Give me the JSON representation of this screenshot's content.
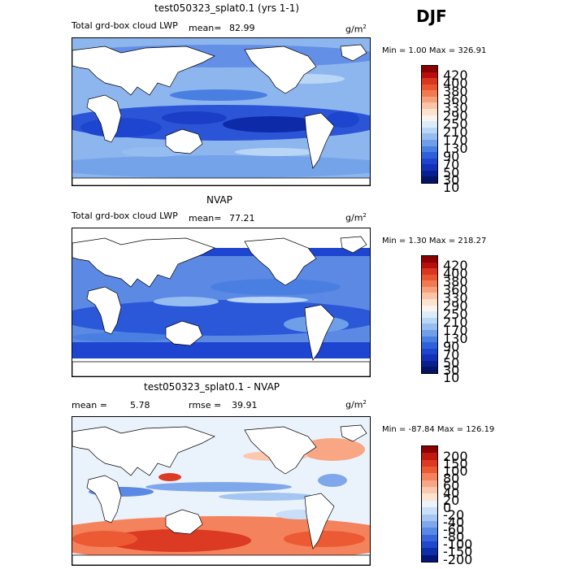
{
  "season": "DJF",
  "panels": [
    {
      "id": "model",
      "title": "test050323_splat0.1 (yrs 1-1)",
      "variable": "Total grd-box cloud LWP",
      "mean_label": "mean=",
      "mean_value": "82.99",
      "units_base": "g/m",
      "units_exp": "2",
      "minmax": "Min =    1.00 Max = 326.91",
      "colorbar": {
        "colors": [
          "#8b0000",
          "#b80e0e",
          "#d9361f",
          "#e8552f",
          "#f27a52",
          "#f8a07c",
          "#fbc4a6",
          "#fde2cf",
          "#fbf4ee",
          "#dcebfa",
          "#bad6f6",
          "#96bdf0",
          "#6e9fe8",
          "#4a7fe2",
          "#2f60db",
          "#1d45cf",
          "#1230b8",
          "#0a1f8f",
          "#031466"
        ],
        "labels": [
          "420",
          "400",
          "380",
          "360",
          "330",
          "290",
          "250",
          "210",
          "170",
          "130",
          "90",
          "70",
          "50",
          "30",
          "10"
        ]
      }
    },
    {
      "id": "obs",
      "title": "NVAP",
      "variable": "Total grd-box cloud LWP",
      "mean_label": "mean=",
      "mean_value": "77.21",
      "units_base": "g/m",
      "units_exp": "2",
      "minmax": "Min =    1.30 Max = 218.27",
      "colorbar": {
        "colors": [
          "#8b0000",
          "#b80e0e",
          "#d9361f",
          "#e8552f",
          "#f27a52",
          "#f8a07c",
          "#fbc4a6",
          "#fde2cf",
          "#fbf4ee",
          "#dcebfa",
          "#bad6f6",
          "#96bdf0",
          "#6e9fe8",
          "#4a7fe2",
          "#2f60db",
          "#1d45cf",
          "#1230b8",
          "#0a1f8f",
          "#031466"
        ],
        "labels": [
          "420",
          "400",
          "380",
          "360",
          "330",
          "290",
          "250",
          "210",
          "170",
          "130",
          "90",
          "70",
          "50",
          "30",
          "10"
        ]
      }
    },
    {
      "id": "diff",
      "title": "test050323_splat0.1 - NVAP",
      "mean_label": "mean =",
      "mean_value": "5.78",
      "rmse_label": "rmse =",
      "rmse_value": "39.91",
      "units_base": "g/m",
      "units_exp": "2",
      "minmax": "Min = -87.84 Max = 126.19",
      "colorbar": {
        "colors": [
          "#8b0000",
          "#c01a10",
          "#dc3a22",
          "#ec5a34",
          "#f4825c",
          "#f8a683",
          "#fbc8ad",
          "#fde3d2",
          "#eaf2fc",
          "#c9def8",
          "#a5c6f3",
          "#7fa8ec",
          "#5a88e5",
          "#3766dc",
          "#1f48cc",
          "#0f2fa8",
          "#05157a"
        ],
        "labels": [
          "200",
          "150",
          "100",
          "80",
          "60",
          "40",
          "20",
          "0",
          "-20",
          "-40",
          "-60",
          "-80",
          "-100",
          "-150",
          "-200"
        ]
      }
    }
  ],
  "chart_data": [
    {
      "type": "heatmap",
      "title": "test050323_splat0.1 (yrs 1-1)",
      "subtitle": "Total grd-box cloud LWP",
      "units": "g/m2",
      "mean": 82.99,
      "min": 1.0,
      "max": 326.91,
      "contour_levels": [
        10,
        30,
        50,
        70,
        90,
        130,
        170,
        210,
        250,
        290,
        330,
        360,
        380,
        400,
        420
      ]
    },
    {
      "type": "heatmap",
      "title": "NVAP",
      "subtitle": "Total grd-box cloud LWP",
      "units": "g/m2",
      "mean": 77.21,
      "min": 1.3,
      "max": 218.27,
      "contour_levels": [
        10,
        30,
        50,
        70,
        90,
        130,
        170,
        210,
        250,
        290,
        330,
        360,
        380,
        400,
        420
      ]
    },
    {
      "type": "heatmap",
      "title": "test050323_splat0.1 - NVAP",
      "units": "g/m2",
      "mean": 5.78,
      "rmse": 39.91,
      "min": -87.84,
      "max": 126.19,
      "contour_levels": [
        -200,
        -150,
        -100,
        -80,
        -60,
        -40,
        -20,
        0,
        20,
        40,
        60,
        80,
        100,
        150,
        200
      ]
    }
  ]
}
